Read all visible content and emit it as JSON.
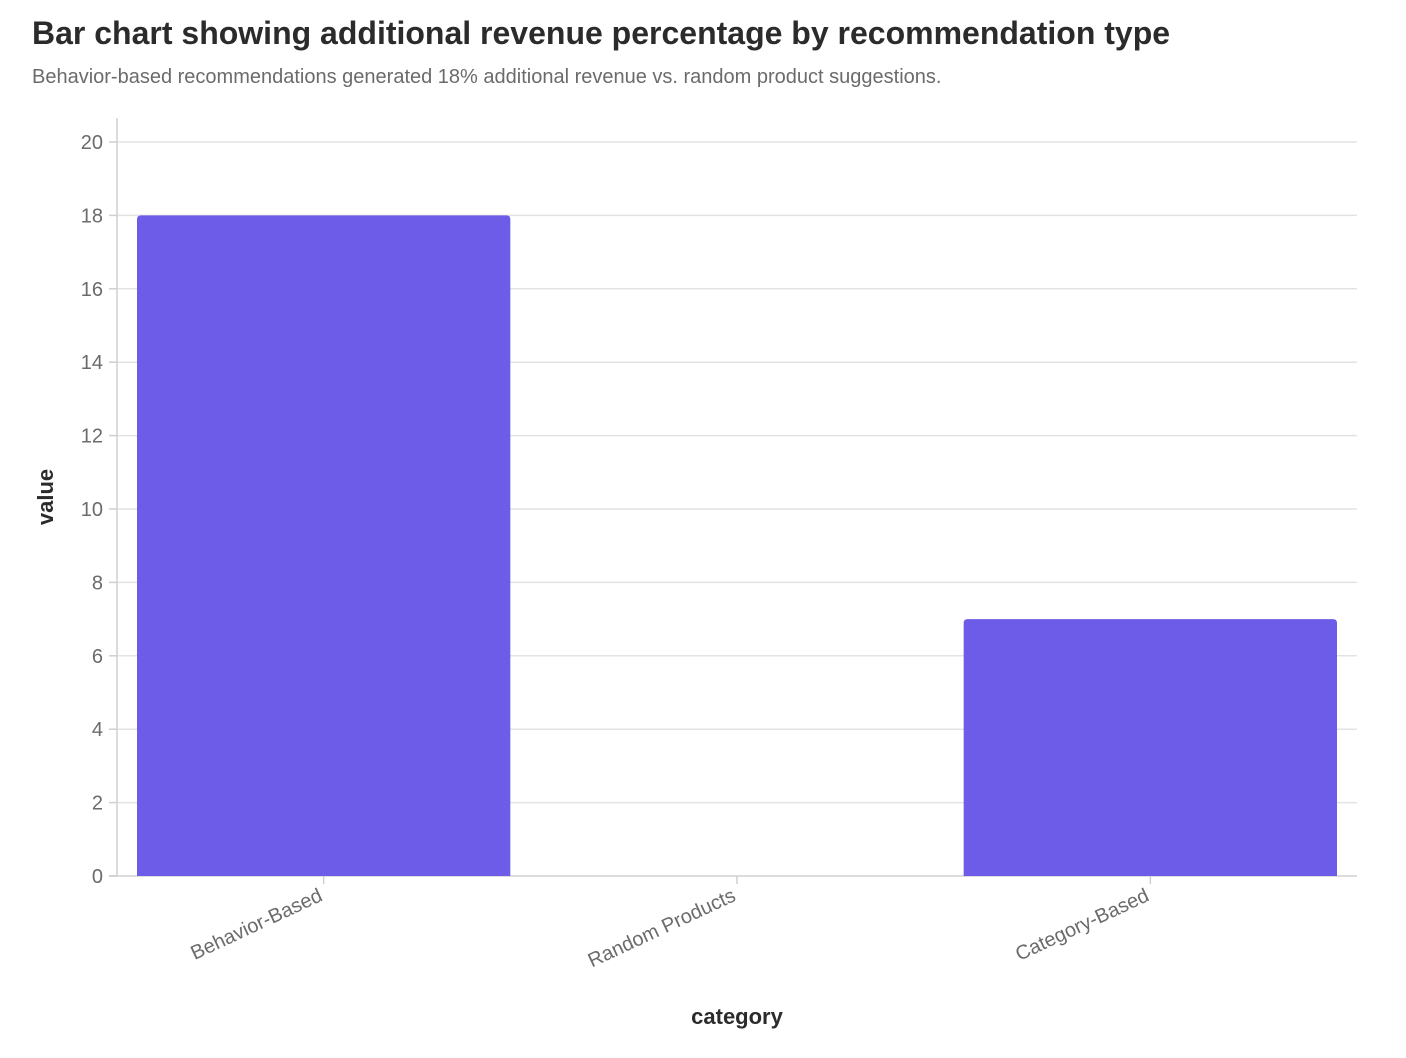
{
  "chart_data": {
    "type": "bar",
    "title": "Bar chart showing additional revenue percentage by recommendation type",
    "subtitle": "Behavior-based recommendations generated 18% additional revenue vs. random product suggestions.",
    "xlabel": "category",
    "ylabel": "value",
    "categories": [
      "Behavior-Based",
      "Random Products",
      "Category-Based"
    ],
    "values": [
      18,
      0,
      7
    ],
    "ylim": [
      0,
      20
    ],
    "yticks": [
      "0",
      "2",
      "4",
      "6",
      "8",
      "10",
      "12",
      "14",
      "16",
      "18",
      "20"
    ],
    "grid": true,
    "legend": "none",
    "bar_color": "#6c5ce7"
  }
}
